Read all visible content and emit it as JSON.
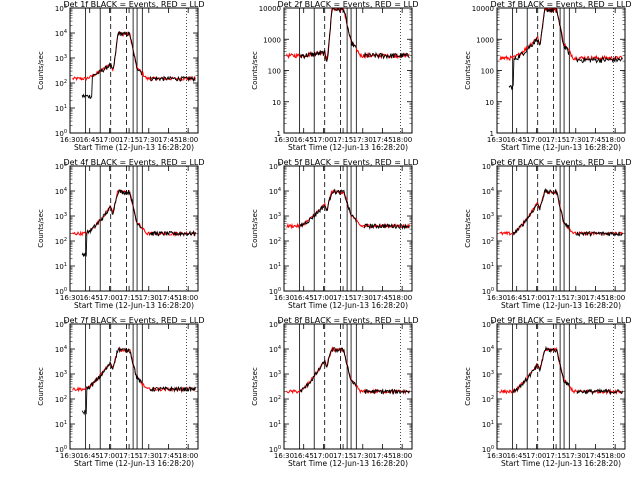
{
  "chart_data": {
    "type": "line",
    "y_scale": "log",
    "x_start_time": "16:30",
    "x_end_time": "18:15",
    "x_tick_labels": [
      "16:30",
      "16:45",
      "17:00",
      "17:15",
      "17:30",
      "17:45",
      "18:00"
    ],
    "xlabel": "Start Time (12-Jun-13 16:28:20)",
    "ylabel": "Counts/sec",
    "series_names": [
      "BLACK = Events",
      "RED = LLD"
    ],
    "colors": {
      "events": "#000000",
      "lld": "#ff0000"
    },
    "panels": [
      {
        "title": "Det 1f BLACK = Events, RED = LLD",
        "ylim_exp": [
          0,
          5
        ],
        "ytick_style": "pow",
        "lld": {
          "base": 150,
          "bump": 600,
          "bump_pos": 0.38,
          "peak": 10000,
          "gap": []
        },
        "events": {
          "base": 150,
          "bump": 550,
          "bump_pos": 0.38,
          "peak": 10000,
          "gap": [
            0.09,
            0.17
          ]
        },
        "solid_lines": [
          0.122,
          0.236,
          0.493,
          0.524,
          0.565
        ],
        "dashed_lines": [
          0.318,
          0.442
        ]
      },
      {
        "title": "Det 2f BLACK = Events, RED = LLD",
        "ylim_exp": [
          0,
          4
        ],
        "ytick_style": "plain",
        "lld": {
          "base": 300,
          "bump": 400,
          "bump_pos": 0.38,
          "peak": 10000,
          "gap": []
        },
        "events": {
          "base": 300,
          "bump": 370,
          "bump_pos": 0.38,
          "peak": 10000,
          "gap": []
        },
        "solid_lines": [
          0.122,
          0.236,
          0.493,
          0.524,
          0.565
        ],
        "dashed_lines": [
          0.318,
          0.442
        ]
      },
      {
        "title": "Det 3f BLACK = Events, RED = LLD",
        "ylim_exp": [
          0,
          4
        ],
        "ytick_style": "plain",
        "lld": {
          "base": 250,
          "bump": 1200,
          "bump_pos": 0.38,
          "peak": 10000,
          "gap": []
        },
        "events": {
          "base": 220,
          "bump": 1100,
          "bump_pos": 0.38,
          "peak": 9500,
          "gap": [
            0.09,
            0.13
          ]
        },
        "solid_lines": [
          0.122,
          0.236,
          0.493,
          0.524,
          0.565
        ],
        "dashed_lines": [
          0.318,
          0.442
        ]
      },
      {
        "title": "Det 4f BLACK = Events, RED = LLD",
        "ylim_exp": [
          0,
          5
        ],
        "ytick_style": "pow",
        "lld": {
          "base": 200,
          "bump": 2500,
          "bump_pos": 0.38,
          "peak": 10000,
          "gap": []
        },
        "events": {
          "base": 200,
          "bump": 2300,
          "bump_pos": 0.38,
          "peak": 10000,
          "gap": [
            0.09,
            0.13
          ]
        },
        "solid_lines": [
          0.122,
          0.236,
          0.493,
          0.524,
          0.565
        ],
        "dashed_lines": [
          0.318,
          0.442
        ]
      },
      {
        "title": "Det 5f BLACK = Events, RED = LLD",
        "ylim_exp": [
          0,
          5
        ],
        "ytick_style": "pow",
        "lld": {
          "base": 400,
          "bump": 3000,
          "bump_pos": 0.38,
          "peak": 10000,
          "gap": []
        },
        "events": {
          "base": 400,
          "bump": 2800,
          "bump_pos": 0.38,
          "peak": 10000,
          "gap": []
        },
        "solid_lines": [
          0.122,
          0.236,
          0.493,
          0.524,
          0.565
        ],
        "dashed_lines": [
          0.318,
          0.442
        ]
      },
      {
        "title": "Det 6f BLACK = Events, RED = LLD",
        "ylim_exp": [
          0,
          5
        ],
        "ytick_style": "pow",
        "lld": {
          "base": 200,
          "bump": 3500,
          "bump_pos": 0.38,
          "peak": 10000,
          "gap": []
        },
        "events": {
          "base": 200,
          "bump": 3300,
          "bump_pos": 0.38,
          "peak": 10000,
          "gap": []
        },
        "solid_lines": [
          0.122,
          0.236,
          0.493,
          0.524,
          0.565
        ],
        "dashed_lines": [
          0.318,
          0.442
        ]
      },
      {
        "title": "Det 7f BLACK = Events, RED = LLD",
        "ylim_exp": [
          0,
          5
        ],
        "ytick_style": "pow",
        "lld": {
          "base": 250,
          "bump": 3000,
          "bump_pos": 0.38,
          "peak": 10000,
          "gap": []
        },
        "events": {
          "base": 250,
          "bump": 2800,
          "bump_pos": 0.38,
          "peak": 10000,
          "gap": [
            0.09,
            0.13
          ]
        },
        "solid_lines": [
          0.122,
          0.236,
          0.493,
          0.524,
          0.565
        ],
        "dashed_lines": [
          0.318,
          0.442
        ]
      },
      {
        "title": "Det 8f BLACK = Events, RED = LLD",
        "ylim_exp": [
          0,
          5
        ],
        "ytick_style": "pow",
        "lld": {
          "base": 200,
          "bump": 3500,
          "bump_pos": 0.38,
          "peak": 10000,
          "gap": []
        },
        "events": {
          "base": 200,
          "bump": 3300,
          "bump_pos": 0.38,
          "peak": 10000,
          "gap": []
        },
        "solid_lines": [
          0.122,
          0.236,
          0.493,
          0.524,
          0.565
        ],
        "dashed_lines": [
          0.318,
          0.442
        ]
      },
      {
        "title": "Det 9f BLACK = Events, RED = LLD",
        "ylim_exp": [
          0,
          5
        ],
        "ytick_style": "pow",
        "lld": {
          "base": 200,
          "bump": 2500,
          "bump_pos": 0.38,
          "peak": 10000,
          "gap": []
        },
        "events": {
          "base": 200,
          "bump": 2300,
          "bump_pos": 0.38,
          "peak": 10000,
          "gap": []
        },
        "solid_lines": [
          0.122,
          0.236,
          0.493,
          0.524,
          0.565
        ],
        "dashed_lines": [
          0.318,
          0.442
        ]
      }
    ]
  }
}
